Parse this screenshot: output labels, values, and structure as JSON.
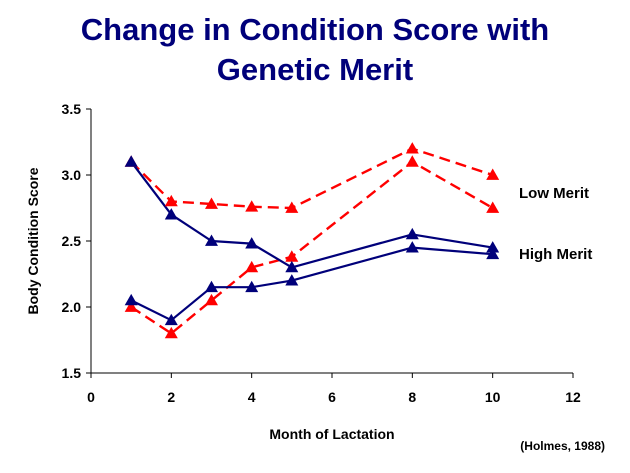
{
  "chart_data": {
    "type": "line",
    "title_lines": [
      "Change in Condition Score with",
      "Genetic Merit"
    ],
    "xlabel": "Month of Lactation",
    "ylabel": "Body Condition Score",
    "xlim": [
      0,
      12
    ],
    "ylim": [
      1.5,
      3.5
    ],
    "x_ticks": [
      0,
      2,
      4,
      6,
      8,
      10,
      12
    ],
    "y_ticks": [
      "1.5",
      "2.0",
      "2.5",
      "3.0",
      "3.5"
    ],
    "grid": false,
    "legend": "none",
    "annotations": {
      "low_merit_label": "Low Merit",
      "high_merit_label": "High Merit",
      "source": "(Holmes, 1988)"
    },
    "colors": {
      "low_merit": "#ff0000",
      "high_merit": "#00007a",
      "axis": "#000000"
    },
    "series": [
      {
        "group": "low",
        "style": "dashed",
        "marker": "triangle",
        "x": [
          1,
          2,
          3,
          4,
          5,
          8,
          10
        ],
        "y": [
          3.1,
          2.8,
          2.78,
          2.76,
          2.75,
          3.2,
          3.0
        ]
      },
      {
        "group": "low",
        "style": "dashed",
        "marker": "triangle",
        "x": [
          1,
          2,
          3,
          4,
          5,
          8,
          10
        ],
        "y": [
          2.0,
          1.8,
          2.05,
          2.3,
          2.38,
          3.1,
          2.75
        ]
      },
      {
        "group": "high",
        "style": "solid",
        "marker": "triangle",
        "x": [
          1,
          2,
          3,
          4,
          5,
          8,
          10
        ],
        "y": [
          3.1,
          2.7,
          2.5,
          2.48,
          2.3,
          2.55,
          2.45
        ]
      },
      {
        "group": "high",
        "style": "solid",
        "marker": "triangle",
        "x": [
          1,
          2,
          3,
          4,
          5,
          8,
          10
        ],
        "y": [
          2.05,
          1.9,
          2.15,
          2.15,
          2.2,
          2.45,
          2.4
        ]
      }
    ]
  }
}
